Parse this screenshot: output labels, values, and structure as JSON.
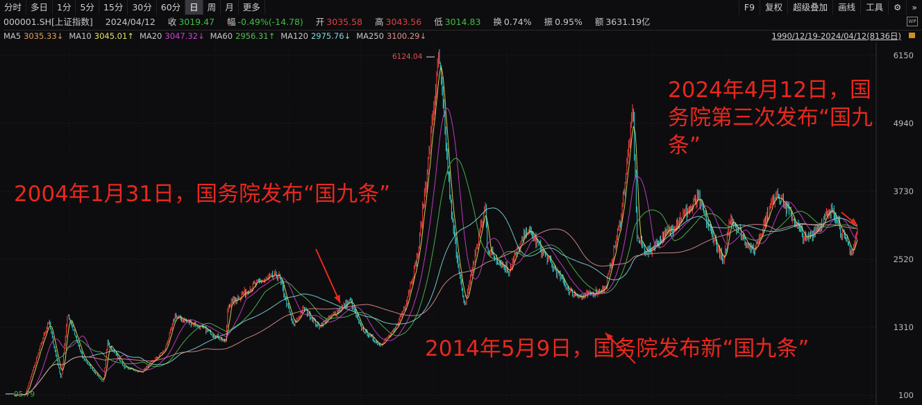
{
  "toolbar": {
    "tabs": [
      "分时",
      "多日",
      "1分",
      "5分",
      "15分",
      "30分",
      "60分",
      "日",
      "周",
      "月",
      "更多"
    ],
    "active": "日",
    "right": [
      "F9",
      "复权",
      "超级叠加",
      "画线",
      "工具"
    ],
    "settings_icon": "gear-icon",
    "more_icon": "chevron-double-right-icon"
  },
  "info": {
    "code": "000001.SH[上证指数]",
    "date": "2024/04/12",
    "close_label": "收",
    "close": "3019.47",
    "change_label": "幅",
    "change": "-0.49%(-14.78)",
    "open_label": "开",
    "open": "3035.58",
    "high_label": "高",
    "high": "3043.56",
    "low_label": "低",
    "low": "3014.83",
    "turnover_label": "换",
    "turnover": "0.74%",
    "amplitude_label": "振",
    "amplitude": "0.95%",
    "amount_label": "额",
    "amount": "3631.19亿"
  },
  "ma": [
    {
      "label": "MA5",
      "value": "3035.33↓",
      "color": "#e0a050"
    },
    {
      "label": "MA10",
      "value": "3045.01↑",
      "color": "#e8e060"
    },
    {
      "label": "MA20",
      "value": "3047.32↓",
      "color": "#d040d0"
    },
    {
      "label": "MA60",
      "value": "2956.31↑",
      "color": "#50c050"
    },
    {
      "label": "MA120",
      "value": "2975.76↓",
      "color": "#80d8e0"
    },
    {
      "label": "MA250",
      "value": "3100.29↓",
      "color": "#e09090"
    }
  ],
  "range": "1990/12/19-2024/04/12(8136日)",
  "colors": {
    "up": "#ff3b3b",
    "down": "#2fd4d4",
    "accent": "#e8281e",
    "bg": "#0d0d0f"
  },
  "annotations": [
    {
      "text": "2004年1月31日，国务院发布“国九条”"
    },
    {
      "text": "2014年5月9日，国务院发布新“国九条”"
    },
    {
      "text": "2024年4月12日，国务院第三次发布“国九条”"
    }
  ],
  "chart_data": {
    "type": "candlestick",
    "title": "",
    "y_ticks": [
      100,
      1310,
      2520,
      3730,
      4940,
      6150
    ],
    "ylim": [
      100,
      6150
    ],
    "xlim": [
      "1990-12-19",
      "2024-04-12"
    ],
    "high_label": "6124.04",
    "low_label": "95.79",
    "grid": true,
    "series": [
      {
        "x": [
          "1990-12",
          "1991-06",
          "1992-05",
          "1992-11",
          "1993-02",
          "1993-09",
          "1994-07",
          "1994-09",
          "1995-05",
          "1996-01",
          "1996-12",
          "1997-05",
          "1998-06",
          "1999-05",
          "1999-06",
          "2000-08",
          "2001-06",
          "2002-01",
          "2002-06",
          "2003-01",
          "2004-04",
          "2004-09",
          "2005-06",
          "2006-01",
          "2006-06",
          "2006-12",
          "2007-05",
          "2007-10",
          "2008-04",
          "2008-10",
          "2009-08",
          "2009-09",
          "2010-07",
          "2011-04",
          "2012-12",
          "2013-06",
          "2014-05",
          "2014-12",
          "2015-06",
          "2015-08",
          "2016-01",
          "2017-01",
          "2018-01",
          "2019-01",
          "2019-04",
          "2020-03",
          "2021-02",
          "2022-04",
          "2023-05",
          "2023-10",
          "2024-02",
          "2024-04"
        ],
        "y": [
          100,
          120,
          1429,
          386,
          1558,
          780,
          325,
          1052,
          600,
          512,
          900,
          1510,
          1300,
          1047,
          1700,
          2100,
          2245,
          1339,
          1650,
          1320,
          1783,
          1300,
          998,
          1250,
          1700,
          2600,
          4300,
          6124,
          3300,
          1664,
          3478,
          2700,
          2319,
          3067,
          1949,
          1849,
          2010,
          3200,
          5178,
          2900,
          2638,
          3100,
          3587,
          2440,
          3288,
          2646,
          3731,
          2863,
          3418,
          2900,
          2635,
          3019
        ]
      }
    ]
  }
}
